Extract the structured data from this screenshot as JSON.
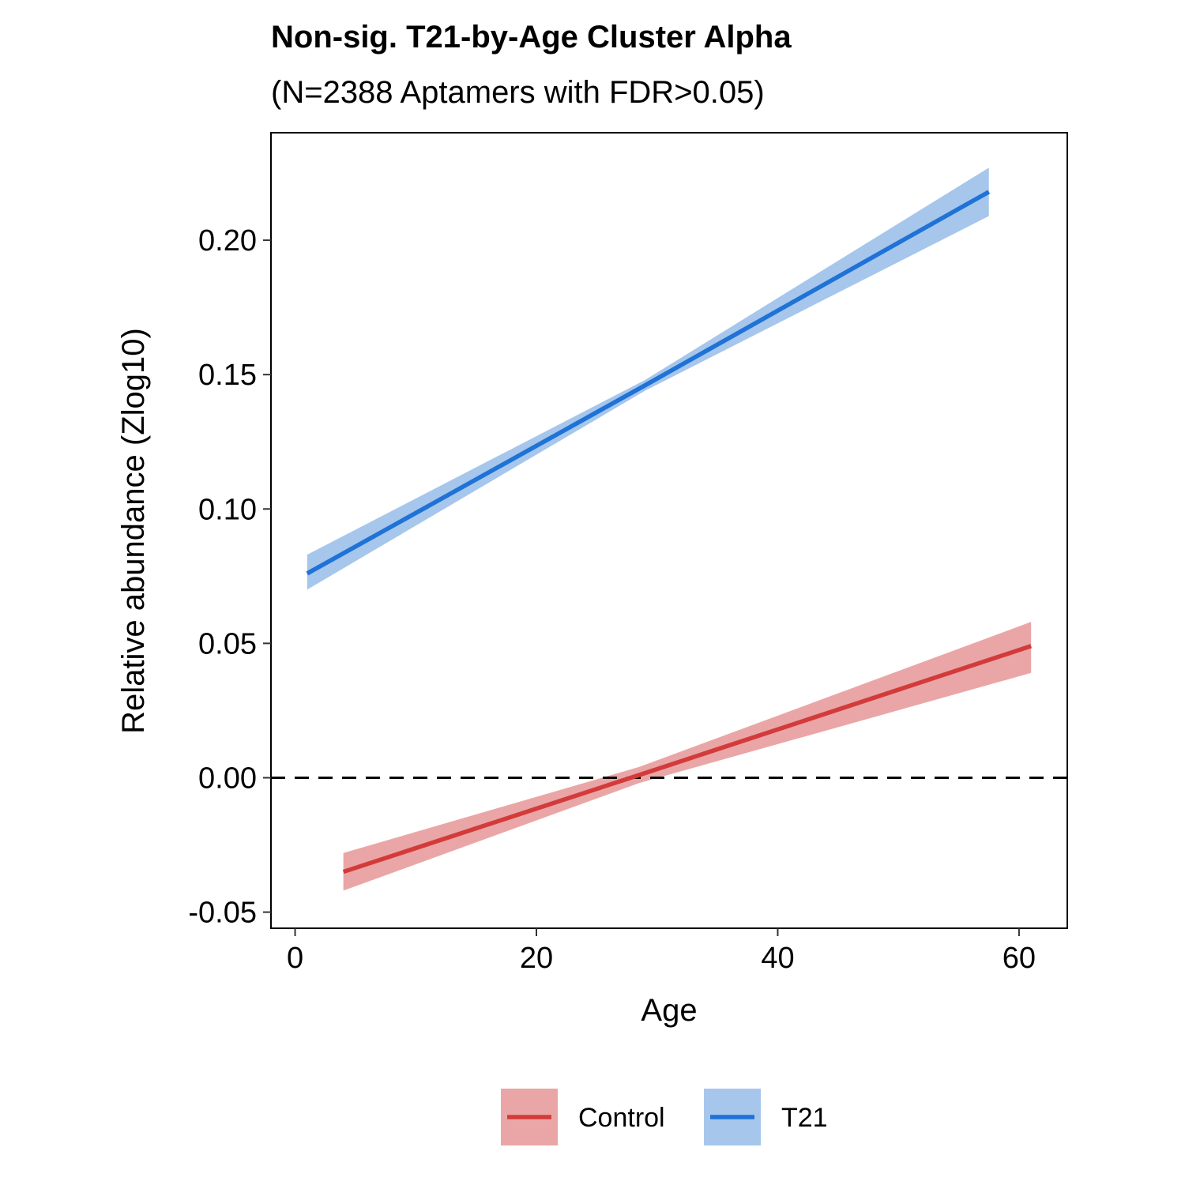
{
  "chart_data": {
    "type": "line",
    "title": "Non-sig. T21-by-Age Cluster Alpha",
    "subtitle": "(N=2388 Aptamers with FDR>0.05)",
    "xlabel": "Age",
    "ylabel": "Relative abundance (Zlog10)",
    "xlim": [
      -2,
      64
    ],
    "ylim": [
      -0.056,
      0.24
    ],
    "xticks": [
      0,
      20,
      40,
      60
    ],
    "xtick_labels": [
      "0",
      "20",
      "40",
      "60"
    ],
    "yticks": [
      -0.05,
      0.0,
      0.05,
      0.1,
      0.15,
      0.2
    ],
    "ytick_labels": [
      "-0.05",
      "0.00",
      "0.05",
      "0.10",
      "0.15",
      "0.20"
    ],
    "reference_line": {
      "y": 0,
      "style": "dashed"
    },
    "legend_position": "bottom",
    "grid": false,
    "series": [
      {
        "name": "Control",
        "color": "#d33b3b",
        "ribbon_color": "#eaa6a6",
        "x": [
          4,
          28.5,
          61
        ],
        "y": [
          -0.035,
          0.001,
          0.049
        ],
        "ci_lower": [
          -0.042,
          -0.002,
          0.039
        ],
        "ci_upper": [
          -0.028,
          0.004,
          0.058
        ]
      },
      {
        "name": "T21",
        "color": "#1f72d6",
        "ribbon_color": "#a6c6ec",
        "x": [
          1,
          29,
          57.5
        ],
        "y": [
          0.076,
          0.146,
          0.218
        ],
        "ci_lower": [
          0.07,
          0.144,
          0.209
        ],
        "ci_upper": [
          0.083,
          0.148,
          0.227
        ]
      }
    ]
  }
}
